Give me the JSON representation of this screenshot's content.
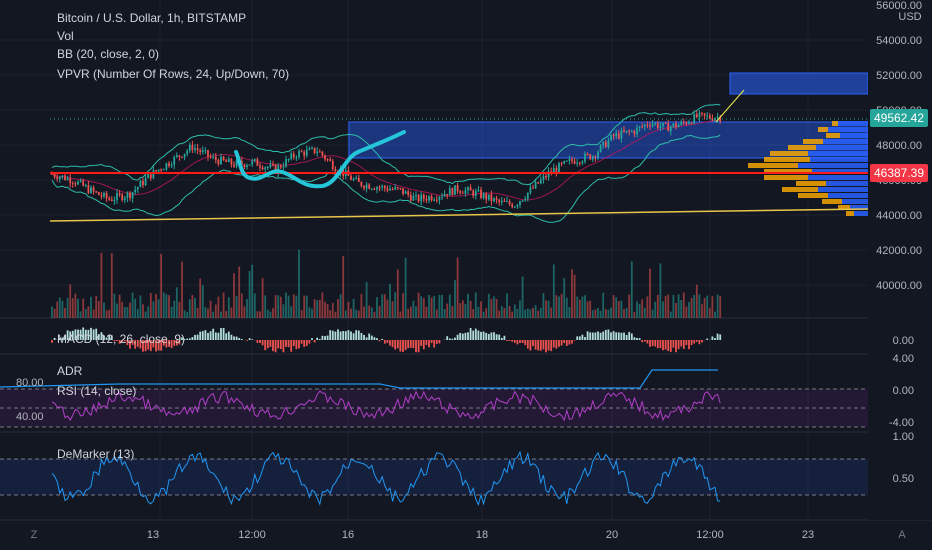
{
  "legend": {
    "title": "Bitcoin / U.S. Dollar, 1h, BITSTAMP",
    "vol": "Vol",
    "bb": "BB (20, close, 2, 0)",
    "vpvr": "VPVR (Number Of Rows, 24, Up/Down, 70)",
    "macd": "MACD (12, 26, close, 9)",
    "adr": "ADR",
    "rsi": "RSI (14, close)",
    "demarker": "DeMarker (13)"
  },
  "axis": {
    "currency": "USD",
    "price_ticks": [
      "56000.00",
      "54000.00",
      "52000.00",
      "50000.00",
      "48000.00",
      "46000.00",
      "44000.00",
      "42000.00",
      "40000.00"
    ],
    "current_price": "49562.42",
    "level_price": "46387.39",
    "macd_tick": "0.00",
    "adr_ticks": [
      "4.00",
      "0.00",
      "-4.00"
    ],
    "rsi_left_ticks": [
      "80.00",
      "40.00"
    ],
    "dem_ticks": [
      "1.00",
      "0.50"
    ],
    "time_labels": [
      "13",
      "12:00",
      "16",
      "18",
      "20",
      "12:00",
      "23"
    ],
    "corner_left": "Z",
    "corner_right": "A"
  },
  "colors": {
    "background": "#131722",
    "up": "#26a69a",
    "down": "#ef5350",
    "bb_band": "#2dbda8",
    "support_line": "#e8c64a",
    "resistance_line": "#ff1a1a",
    "highlight_box": "#2962ff",
    "price_label": "#26a69a",
    "level_label": "#f23645",
    "rsi": "#9c27b0",
    "demarker": "#2196f3",
    "adr": "#2196f3",
    "vpvr_up": "#2962ff",
    "vpvr_down": "#f7a600"
  },
  "chart_data": {
    "type": "candlestick",
    "symbol": "Bitcoin / U.S. Dollar",
    "interval": "1h",
    "exchange": "BITSTAMP",
    "price_range": [
      40000,
      56000
    ],
    "last_price": 49562.42,
    "horizontal_level": 46387.39,
    "close_path": [
      {
        "t": 0,
        "price": 46350
      },
      {
        "t": 8,
        "price": 46000
      },
      {
        "t": 16,
        "price": 45300
      },
      {
        "t": 22,
        "price": 44900
      },
      {
        "t": 30,
        "price": 45200
      },
      {
        "t": 38,
        "price": 46300
      },
      {
        "t": 46,
        "price": 47100
      },
      {
        "t": 54,
        "price": 47900
      },
      {
        "t": 62,
        "price": 47200
      },
      {
        "t": 70,
        "price": 46900
      },
      {
        "t": 78,
        "price": 47000
      },
      {
        "t": 86,
        "price": 46600
      },
      {
        "t": 94,
        "price": 47500
      },
      {
        "t": 102,
        "price": 47700
      },
      {
        "t": 110,
        "price": 46600
      },
      {
        "t": 118,
        "price": 45800
      },
      {
        "t": 126,
        "price": 45600
      },
      {
        "t": 134,
        "price": 45400
      },
      {
        "t": 140,
        "price": 44900
      },
      {
        "t": 148,
        "price": 45100
      },
      {
        "t": 156,
        "price": 45500
      },
      {
        "t": 164,
        "price": 45200
      },
      {
        "t": 172,
        "price": 44700
      },
      {
        "t": 178,
        "price": 44600
      },
      {
        "t": 184,
        "price": 45400
      },
      {
        "t": 192,
        "price": 46500
      },
      {
        "t": 200,
        "price": 47100
      },
      {
        "t": 208,
        "price": 47400
      },
      {
        "t": 216,
        "price": 48500
      },
      {
        "t": 224,
        "price": 48800
      },
      {
        "t": 230,
        "price": 49300
      },
      {
        "t": 236,
        "price": 49000
      },
      {
        "t": 242,
        "price": 49200
      },
      {
        "t": 248,
        "price": 49600
      }
    ],
    "rsi_levels": [
      70,
      30
    ],
    "demarker_levels": [
      0.7,
      0.3
    ]
  }
}
